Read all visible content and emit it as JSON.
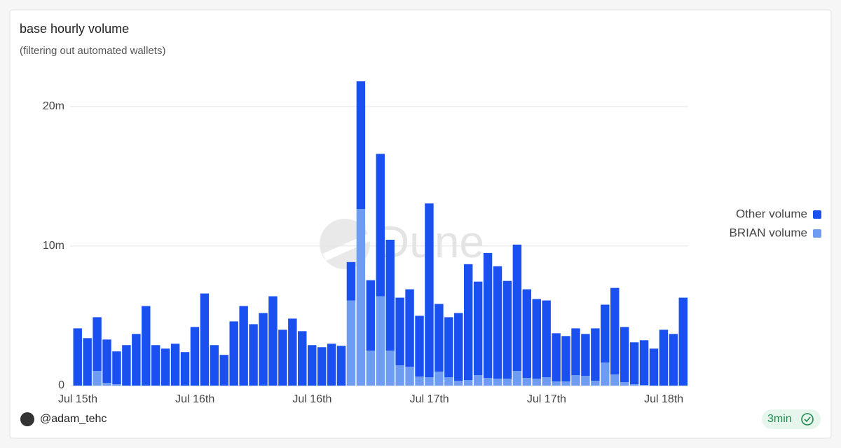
{
  "chart_data": {
    "type": "stacked-bar",
    "title": "base hourly volume",
    "subtitle": "(filtering out automated wallets)",
    "watermark": "Dune",
    "author": "@adam_tehc",
    "refresh": "3min",
    "categories": [
      "Jul 15th",
      null,
      null,
      null,
      null,
      null,
      null,
      null,
      null,
      null,
      null,
      null,
      "Jul 16th",
      null,
      null,
      null,
      null,
      null,
      null,
      null,
      null,
      null,
      null,
      null,
      "Jul 16th",
      null,
      null,
      null,
      null,
      null,
      null,
      null,
      null,
      null,
      null,
      null,
      "Jul 17th",
      null,
      null,
      null,
      null,
      null,
      null,
      null,
      null,
      null,
      null,
      null,
      "Jul 17th",
      null,
      null,
      null,
      null,
      null,
      null,
      null,
      null,
      null,
      null,
      null,
      "Jul 18th",
      null,
      null
    ],
    "series": [
      {
        "name": "Other volume",
        "color": "#1a50f0",
        "values": [
          4100000,
          3400000,
          3850000,
          3100000,
          2350000,
          2900000,
          3700000,
          5700000,
          2900000,
          2650000,
          3000000,
          2400000,
          4200000,
          6600000,
          2900000,
          2200000,
          4600000,
          5700000,
          4400000,
          5200000,
          6400000,
          4000000,
          4800000,
          3900000,
          2900000,
          2750000,
          3000000,
          2850000,
          2750000,
          9150000,
          5050000,
          10200000,
          7950000,
          4850000,
          5550000,
          4350000,
          12450000,
          4850000,
          4300000,
          4850000,
          8300000,
          6700000,
          8950000,
          8050000,
          7000000,
          9050000,
          6350000,
          5700000,
          5500000,
          3450000,
          3250000,
          3350000,
          3000000,
          3750000,
          4150000,
          6200000,
          3950000,
          3000000,
          3200000,
          2650000,
          4000000,
          3700000,
          6300000
        ]
      },
      {
        "name": "BRIAN volume",
        "color": "#6d9cf2",
        "values": [
          0,
          0,
          1050000,
          200000,
          100000,
          0,
          0,
          0,
          0,
          0,
          0,
          0,
          0,
          0,
          0,
          0,
          0,
          0,
          0,
          0,
          0,
          0,
          0,
          0,
          0,
          0,
          0,
          0,
          6100000,
          12650000,
          2500000,
          6400000,
          2500000,
          1450000,
          1350000,
          650000,
          600000,
          1000000,
          600000,
          350000,
          400000,
          750000,
          550000,
          500000,
          500000,
          1050000,
          550000,
          500000,
          600000,
          300000,
          300000,
          750000,
          700000,
          350000,
          1650000,
          800000,
          250000,
          100000,
          50000,
          0,
          0,
          0,
          0
        ]
      }
    ],
    "ylim": [
      0,
      22000000
    ],
    "yticks": [
      {
        "value": 0,
        "label": "0"
      },
      {
        "value": 10000000,
        "label": "10m"
      },
      {
        "value": 20000000,
        "label": "20m"
      }
    ],
    "grid": true,
    "legend": "right"
  }
}
